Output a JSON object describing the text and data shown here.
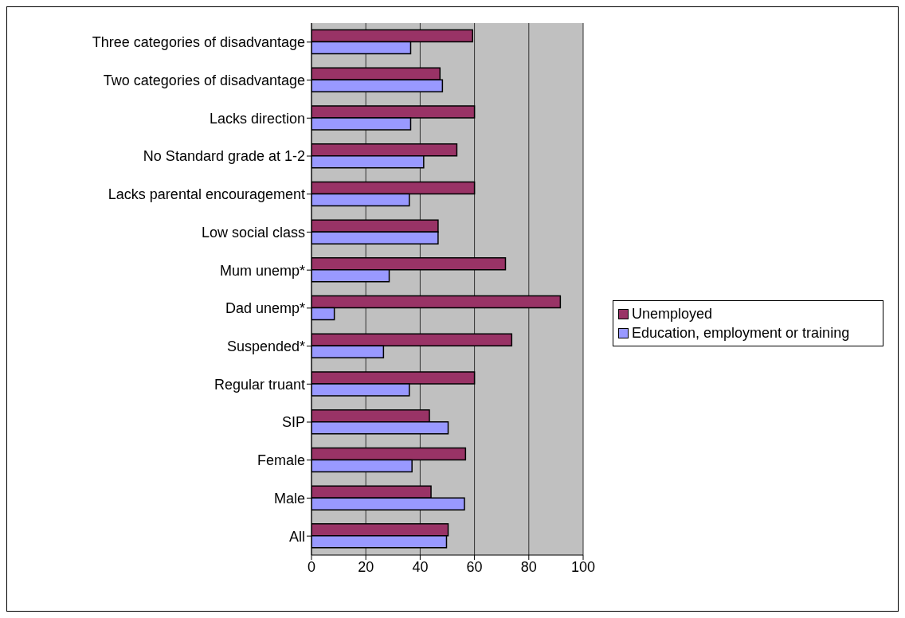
{
  "chart_data": {
    "type": "bar",
    "orientation": "horizontal",
    "categories": [
      "Three categories of disadvantage",
      "Two categories of disadvantage",
      "Lacks direction",
      "No Standard grade at 1-2",
      "Lacks parental encouragement",
      "Low social class",
      "Mum unemp*",
      "Dad unemp*",
      "Suspended*",
      "Regular truant",
      "SIP",
      "Female",
      "Male",
      "All"
    ],
    "series": [
      {
        "name": "Unemployed",
        "color": "#993366",
        "values": [
          59.3,
          47.3,
          60,
          53.5,
          60,
          46.6,
          71.4,
          91.6,
          73.7,
          60,
          43.4,
          56.7,
          44,
          50.3
        ]
      },
      {
        "name": "Education, employment or training",
        "color": "#9999ff",
        "values": [
          36.5,
          48.2,
          36.5,
          41.3,
          36,
          46.6,
          28.6,
          8.4,
          26.5,
          36,
          50.3,
          37,
          56.3,
          49.7
        ]
      }
    ],
    "xlim": [
      0,
      100
    ],
    "xticks": [
      0,
      20,
      40,
      60,
      80,
      100
    ],
    "grid": "x",
    "legend": "right"
  }
}
